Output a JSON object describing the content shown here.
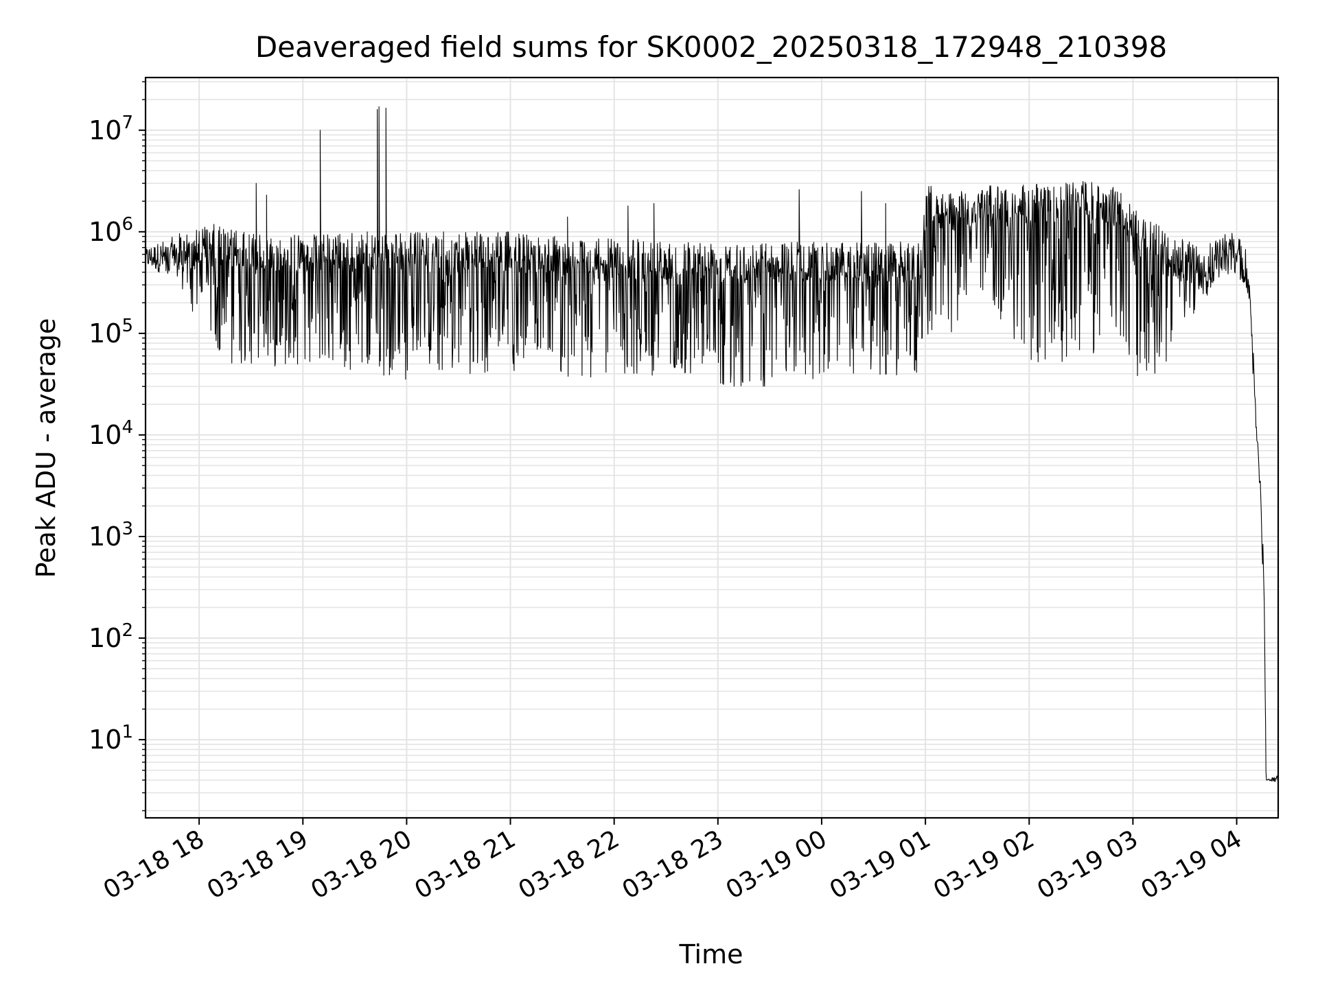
{
  "chart_data": {
    "type": "line",
    "title": "Deaveraged field sums for SK0002_20250318_172948_210398",
    "xlabel": "Time",
    "ylabel": "Peak ADU - average",
    "yscale": "log",
    "grid": true,
    "xlim": [
      "2025-03-18 17:29",
      "2025-03-19 04:24"
    ],
    "ylim": [
      1.7,
      33000000.0
    ],
    "x_ticks": [
      "2025-03-18 18:00",
      "2025-03-18 19:00",
      "2025-03-18 20:00",
      "2025-03-18 21:00",
      "2025-03-18 22:00",
      "2025-03-18 23:00",
      "2025-03-19 00:00",
      "2025-03-19 01:00",
      "2025-03-19 02:00",
      "2025-03-19 03:00",
      "2025-03-19 04:00"
    ],
    "x_tick_labels": [
      "03-18 18",
      "03-18 19",
      "03-18 20",
      "03-18 21",
      "03-18 22",
      "03-18 23",
      "03-19 00",
      "03-19 01",
      "03-19 02",
      "03-19 03",
      "03-19 04"
    ],
    "y_ticks": [
      10,
      100,
      1000,
      10000,
      100000,
      1000000,
      10000000
    ],
    "y_tick_labels": [
      {
        "base": "10",
        "exp": "1"
      },
      {
        "base": "10",
        "exp": "2"
      },
      {
        "base": "10",
        "exp": "3"
      },
      {
        "base": "10",
        "exp": "4"
      },
      {
        "base": "10",
        "exp": "5"
      },
      {
        "base": "10",
        "exp": "6"
      },
      {
        "base": "10",
        "exp": "7"
      }
    ],
    "series": [
      {
        "color": "#000000",
        "envelope_points": [
          {
            "x": "2025-03-18 17:29",
            "y_high": 700000,
            "y_low": 450000
          },
          {
            "x": "2025-03-18 17:45",
            "y_high": 900000,
            "y_low": 350000
          },
          {
            "x": "2025-03-18 17:55",
            "y_high": 1100000,
            "y_low": 180000
          },
          {
            "x": "2025-03-18 18:10",
            "y_high": 1200000,
            "y_low": 50000
          },
          {
            "x": "2025-03-18 18:30",
            "y_high": 950000,
            "y_low": 45000
          },
          {
            "x": "2025-03-18 19:00",
            "y_high": 950000,
            "y_low": 50000
          },
          {
            "x": "2025-03-18 19:30",
            "y_high": 1000000,
            "y_low": 40000
          },
          {
            "x": "2025-03-18 20:00",
            "y_high": 1000000,
            "y_low": 35000
          },
          {
            "x": "2025-03-18 20:30",
            "y_high": 1000000,
            "y_low": 40000
          },
          {
            "x": "2025-03-18 21:00",
            "y_high": 1000000,
            "y_low": 40000
          },
          {
            "x": "2025-03-18 21:30",
            "y_high": 900000,
            "y_low": 35000
          },
          {
            "x": "2025-03-18 22:00",
            "y_high": 850000,
            "y_low": 35000
          },
          {
            "x": "2025-03-18 22:30",
            "y_high": 850000,
            "y_low": 40000
          },
          {
            "x": "2025-03-18 23:00",
            "y_high": 850000,
            "y_low": 30000
          },
          {
            "x": "2025-03-18 23:30",
            "y_high": 800000,
            "y_low": 30000
          },
          {
            "x": "2025-03-19 00:00",
            "y_high": 800000,
            "y_low": 35000
          },
          {
            "x": "2025-03-19 00:30",
            "y_high": 800000,
            "y_low": 35000
          },
          {
            "x": "2025-03-19 00:58",
            "y_high": 800000,
            "y_low": 40000
          },
          {
            "x": "2025-03-19 01:00",
            "y_high": 3000000,
            "y_low": 80000
          },
          {
            "x": "2025-03-19 01:15",
            "y_high": 2500000,
            "y_low": 100000
          },
          {
            "x": "2025-03-19 01:30",
            "y_high": 2800000,
            "y_low": 300000
          },
          {
            "x": "2025-03-19 02:00",
            "y_high": 3000000,
            "y_low": 50000
          },
          {
            "x": "2025-03-19 02:30",
            "y_high": 3200000,
            "y_low": 50000
          },
          {
            "x": "2025-03-19 02:50",
            "y_high": 2800000,
            "y_low": 60000
          },
          {
            "x": "2025-03-19 03:05",
            "y_high": 1500000,
            "y_low": 35000
          },
          {
            "x": "2025-03-19 03:20",
            "y_high": 1000000,
            "y_low": 40000
          },
          {
            "x": "2025-03-19 03:40",
            "y_high": 700000,
            "y_low": 200000
          },
          {
            "x": "2025-03-19 03:58",
            "y_high": 1100000,
            "y_low": 400000
          },
          {
            "x": "2025-03-19 04:05",
            "y_high": 700000,
            "y_low": 300000
          },
          {
            "x": "2025-03-19 04:08",
            "y_high": 250000,
            "y_low": 150000
          },
          {
            "x": "2025-03-19 04:10",
            "y_high": 50000,
            "y_low": 20000
          },
          {
            "x": "2025-03-19 04:12",
            "y_high": 10000,
            "y_low": 6000
          },
          {
            "x": "2025-03-19 04:14",
            "y_high": 3000,
            "y_low": 2000
          },
          {
            "x": "2025-03-19 04:16",
            "y_high": 500,
            "y_low": 100
          },
          {
            "x": "2025-03-19 04:17",
            "y_high": 4,
            "y_low": 4
          },
          {
            "x": "2025-03-19 04:24",
            "y_high": 4.5,
            "y_low": 3.8
          }
        ],
        "spikes": [
          {
            "x": "2025-03-18 18:33",
            "y": 3000000
          },
          {
            "x": "2025-03-18 18:39",
            "y": 2300000
          },
          {
            "x": "2025-03-18 19:10",
            "y": 10000000
          },
          {
            "x": "2025-03-18 19:43",
            "y": 16000000
          },
          {
            "x": "2025-03-18 19:44",
            "y": 17000000
          },
          {
            "x": "2025-03-18 19:48",
            "y": 16500000
          },
          {
            "x": "2025-03-18 21:33",
            "y": 1400000
          },
          {
            "x": "2025-03-18 22:08",
            "y": 1800000
          },
          {
            "x": "2025-03-18 22:23",
            "y": 1900000
          },
          {
            "x": "2025-03-18 23:47",
            "y": 2600000
          },
          {
            "x": "2025-03-19 00:23",
            "y": 2500000
          },
          {
            "x": "2025-03-19 00:37",
            "y": 1900000
          }
        ]
      }
    ]
  }
}
